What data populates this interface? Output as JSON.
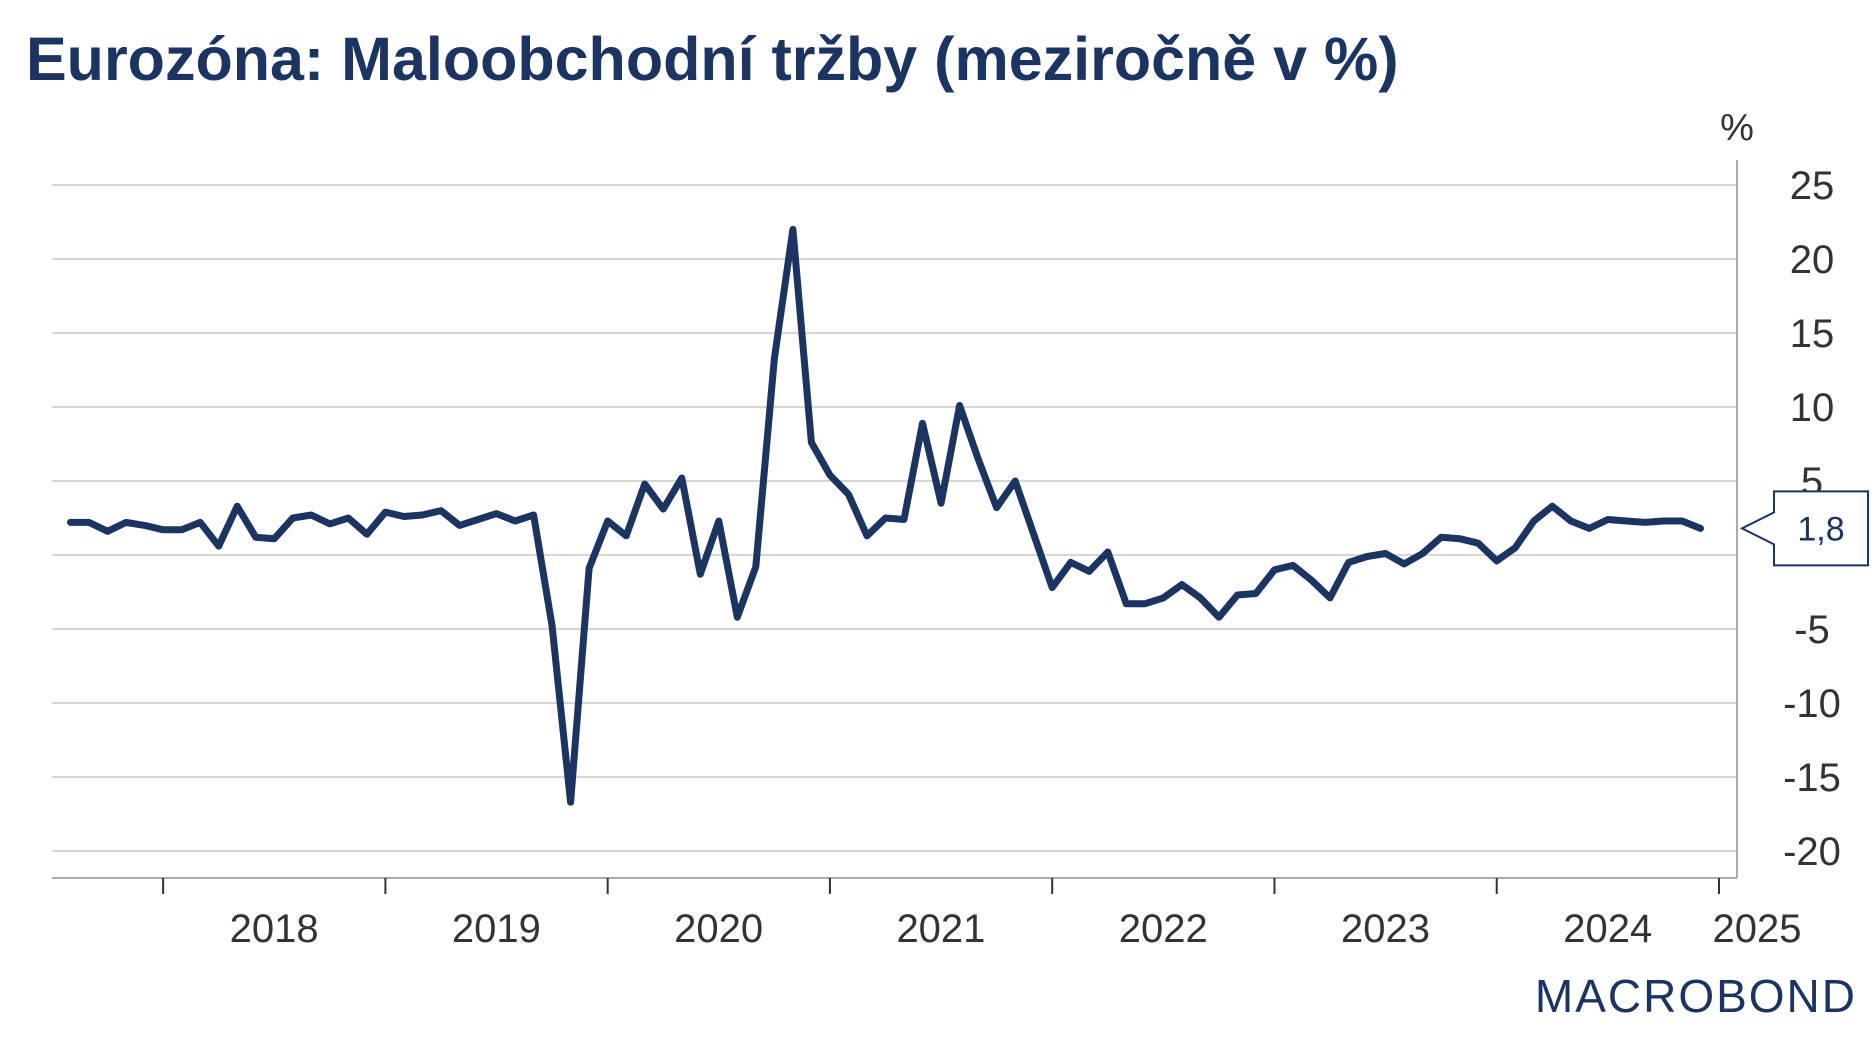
{
  "title": "Eurozóna: Maloobchodní tržby (meziročně v %)",
  "logo_text": "MACROBOND",
  "colors": {
    "series": "#1c3461",
    "grid": "#c8c8c8",
    "axis": "#aaaaaa",
    "title": "#1c3461"
  },
  "chart_data": {
    "type": "line",
    "title": "Eurozóna: Maloobchodní tržby (meziročně v %)",
    "y_unit": "%",
    "ylim": [
      -20,
      25
    ],
    "y_ticks": [
      25,
      20,
      15,
      10,
      5,
      0,
      -5,
      -10,
      -15,
      -20
    ],
    "y_tick_labels": [
      "25",
      "20",
      "15",
      "10",
      "5",
      "",
      "-5",
      "-10",
      "-15",
      "-20"
    ],
    "x_range": [
      "2017-07",
      "2025-01"
    ],
    "x_tick_labels": [
      "2018",
      "2019",
      "2020",
      "2021",
      "2022",
      "2023",
      "2024",
      "2025"
    ],
    "grid": true,
    "legend": "none",
    "last_value_label": "1,8",
    "series": [
      {
        "x": [
          "2017-08",
          "2017-09",
          "2017-10",
          "2017-11",
          "2017-12",
          "2018-01",
          "2018-02",
          "2018-03",
          "2018-04",
          "2018-05",
          "2018-06",
          "2018-07",
          "2018-08",
          "2018-09",
          "2018-10",
          "2018-11",
          "2018-12",
          "2019-01",
          "2019-02",
          "2019-03",
          "2019-04",
          "2019-05",
          "2019-06",
          "2019-07",
          "2019-08",
          "2019-09",
          "2019-10",
          "2019-11",
          "2019-12",
          "2020-01",
          "2020-02",
          "2020-03",
          "2020-04",
          "2020-05",
          "2020-06",
          "2020-07",
          "2020-08",
          "2020-09",
          "2020-10",
          "2020-11",
          "2020-12",
          "2021-01",
          "2021-02",
          "2021-03",
          "2021-04",
          "2021-05",
          "2021-06",
          "2021-07",
          "2021-08",
          "2021-09",
          "2021-10",
          "2021-11",
          "2021-12",
          "2022-01",
          "2022-02",
          "2022-03",
          "2022-04",
          "2022-05",
          "2022-06",
          "2022-07",
          "2022-08",
          "2022-09",
          "2022-10",
          "2022-11",
          "2022-12",
          "2023-01",
          "2023-02",
          "2023-03",
          "2023-04",
          "2023-05",
          "2023-06",
          "2023-07",
          "2023-08",
          "2023-09",
          "2023-10",
          "2023-11",
          "2023-12",
          "2024-01",
          "2024-02",
          "2024-03",
          "2024-04",
          "2024-05",
          "2024-06",
          "2024-07",
          "2024-08",
          "2024-09",
          "2024-10",
          "2024-11",
          "2024-12"
        ],
        "values": [
          2.2,
          2.2,
          1.6,
          2.2,
          2.0,
          1.7,
          1.7,
          2.2,
          0.6,
          3.3,
          1.2,
          1.1,
          2.5,
          2.7,
          2.1,
          2.5,
          1.4,
          2.9,
          2.6,
          2.7,
          3.0,
          2.0,
          2.4,
          2.8,
          2.3,
          2.7,
          -4.8,
          -16.7,
          -0.9,
          2.3,
          1.3,
          4.8,
          3.1,
          5.2,
          -1.3,
          2.3,
          -4.2,
          -0.8,
          13.3,
          22.0,
          7.6,
          5.4,
          4.1,
          1.3,
          2.5,
          2.4,
          8.9,
          3.5,
          10.1,
          6.5,
          3.2,
          5.0,
          1.4,
          -2.2,
          -0.5,
          -1.1,
          0.2,
          -3.3,
          -3.3,
          -2.9,
          -2.0,
          -2.9,
          -4.2,
          -2.7,
          -2.6,
          -1.0,
          -0.7,
          -1.7,
          -2.9,
          -0.5,
          -0.1,
          0.1,
          -0.6,
          0.1,
          1.2,
          1.1,
          0.8,
          -0.4,
          0.5,
          2.3,
          3.3,
          2.3,
          1.8,
          2.4,
          2.3,
          2.2,
          2.3,
          2.3,
          1.8
        ]
      }
    ]
  }
}
